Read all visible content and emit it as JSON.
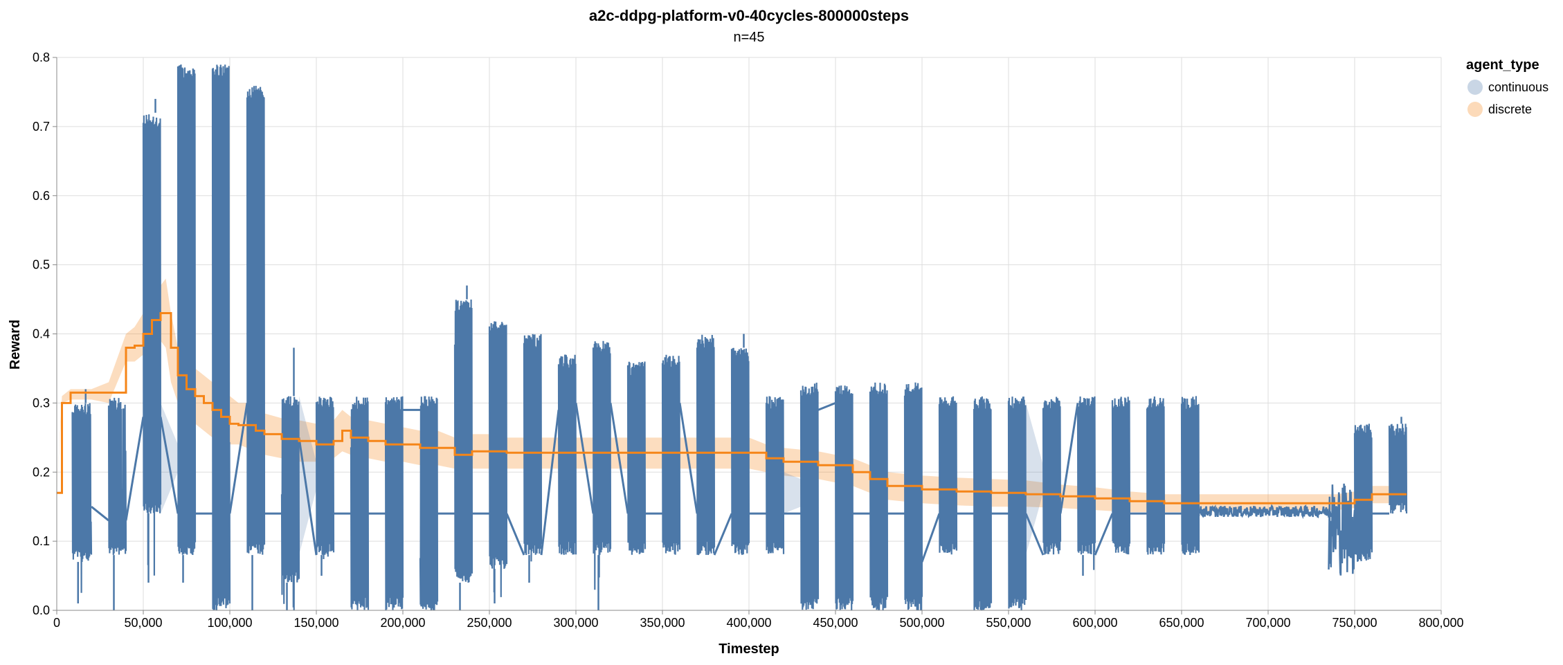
{
  "chart_data": {
    "type": "line",
    "title": "a2c-ddpg-platform-v0-40cycles-800000steps",
    "subtitle": "n=45",
    "xlabel": "Timestep",
    "ylabel": "Reward",
    "xlim": [
      0,
      800000
    ],
    "ylim": [
      0,
      0.8
    ],
    "x_ticks": [
      0,
      50000,
      100000,
      150000,
      200000,
      250000,
      300000,
      350000,
      400000,
      450000,
      500000,
      550000,
      600000,
      650000,
      700000,
      750000,
      800000
    ],
    "x_tick_labels": [
      "0",
      "50,000",
      "100,000",
      "150,000",
      "200,000",
      "250,000",
      "300,000",
      "350,000",
      "400,000",
      "450,000",
      "500,000",
      "550,000",
      "600,000",
      "650,000",
      "700,000",
      "750,000",
      "800,000"
    ],
    "y_ticks": [
      0,
      0.1,
      0.2,
      0.3,
      0.4,
      0.5,
      0.6,
      0.7,
      0.8
    ],
    "y_tick_labels": [
      "0.0",
      "0.1",
      "0.2",
      "0.3",
      "0.4",
      "0.5",
      "0.6",
      "0.7",
      "0.8"
    ],
    "grid": true,
    "legend": {
      "title": "agent_type",
      "position": "right",
      "entries": [
        {
          "name": "continuous",
          "color": "#4c78a8"
        },
        {
          "name": "discrete",
          "color": "#f58518"
        }
      ]
    },
    "series": [
      {
        "name": "discrete",
        "color": "#f58518",
        "x": [
          0,
          3000,
          8000,
          20000,
          30000,
          40000,
          45000,
          50000,
          55000,
          60000,
          63000,
          66000,
          70000,
          75000,
          80000,
          85000,
          90000,
          95000,
          100000,
          105000,
          110000,
          115000,
          120000,
          130000,
          140000,
          150000,
          160000,
          165000,
          170000,
          180000,
          190000,
          200000,
          210000,
          220000,
          230000,
          240000,
          250000,
          260000,
          280000,
          300000,
          320000,
          340000,
          360000,
          380000,
          400000,
          410000,
          420000,
          440000,
          460000,
          470000,
          480000,
          500000,
          520000,
          540000,
          560000,
          580000,
          600000,
          620000,
          640000,
          660000,
          680000,
          700000,
          720000,
          740000,
          750000,
          760000,
          780000
        ],
        "y": [
          0.17,
          0.3,
          0.315,
          0.315,
          0.315,
          0.38,
          0.383,
          0.4,
          0.42,
          0.43,
          0.43,
          0.38,
          0.34,
          0.32,
          0.31,
          0.3,
          0.29,
          0.28,
          0.27,
          0.268,
          0.268,
          0.26,
          0.255,
          0.248,
          0.245,
          0.24,
          0.245,
          0.26,
          0.25,
          0.245,
          0.24,
          0.24,
          0.235,
          0.235,
          0.225,
          0.23,
          0.23,
          0.228,
          0.228,
          0.228,
          0.228,
          0.228,
          0.228,
          0.228,
          0.228,
          0.22,
          0.215,
          0.21,
          0.2,
          0.19,
          0.18,
          0.175,
          0.172,
          0.17,
          0.168,
          0.165,
          0.162,
          0.158,
          0.155,
          0.155,
          0.155,
          0.155,
          0.155,
          0.155,
          0.16,
          0.168,
          0.168
        ],
        "lower": [
          0.17,
          0.3,
          0.305,
          0.305,
          0.3,
          0.36,
          0.36,
          0.37,
          0.38,
          0.39,
          0.38,
          0.33,
          0.3,
          0.28,
          0.27,
          0.26,
          0.25,
          0.245,
          0.24,
          0.24,
          0.235,
          0.23,
          0.225,
          0.22,
          0.215,
          0.215,
          0.22,
          0.23,
          0.225,
          0.22,
          0.215,
          0.215,
          0.21,
          0.21,
          0.205,
          0.205,
          0.205,
          0.205,
          0.205,
          0.205,
          0.205,
          0.205,
          0.205,
          0.205,
          0.205,
          0.2,
          0.195,
          0.19,
          0.18,
          0.17,
          0.16,
          0.155,
          0.152,
          0.15,
          0.15,
          0.148,
          0.145,
          0.142,
          0.142,
          0.142,
          0.145,
          0.145,
          0.145,
          0.145,
          0.148,
          0.155,
          0.155
        ],
        "upper": [
          0.17,
          0.31,
          0.32,
          0.32,
          0.33,
          0.4,
          0.41,
          0.43,
          0.46,
          0.47,
          0.48,
          0.43,
          0.38,
          0.36,
          0.35,
          0.34,
          0.33,
          0.32,
          0.31,
          0.3,
          0.3,
          0.29,
          0.285,
          0.278,
          0.275,
          0.27,
          0.275,
          0.29,
          0.28,
          0.275,
          0.27,
          0.265,
          0.26,
          0.26,
          0.25,
          0.255,
          0.255,
          0.25,
          0.25,
          0.25,
          0.25,
          0.25,
          0.25,
          0.25,
          0.25,
          0.24,
          0.235,
          0.23,
          0.22,
          0.21,
          0.2,
          0.195,
          0.192,
          0.19,
          0.188,
          0.182,
          0.178,
          0.172,
          0.168,
          0.168,
          0.168,
          0.168,
          0.168,
          0.168,
          0.172,
          0.18,
          0.18
        ]
      },
      {
        "name": "continuous",
        "color": "#4c78a8",
        "blocks": [
          {
            "x0": 9000,
            "x1": 20000,
            "low": 0.07,
            "high": 0.3,
            "min": 0.01,
            "max": 0.32
          },
          {
            "x0": 30000,
            "x1": 40000,
            "low": 0.08,
            "high": 0.31,
            "min": 0.0,
            "max": 0.31
          },
          {
            "x0": 50000,
            "x1": 60000,
            "low": 0.14,
            "high": 0.72,
            "min": 0.04,
            "max": 0.74
          },
          {
            "x0": 70000,
            "x1": 80000,
            "low": 0.08,
            "high": 0.79,
            "min": 0.04,
            "max": 0.79
          },
          {
            "x0": 90000,
            "x1": 100000,
            "low": 0.0,
            "high": 0.79,
            "min": 0.0,
            "max": 0.79
          },
          {
            "x0": 110000,
            "x1": 120000,
            "low": 0.08,
            "high": 0.76,
            "min": 0.0,
            "max": 0.76
          },
          {
            "x0": 130000,
            "x1": 140000,
            "low": 0.04,
            "high": 0.31,
            "min": 0.0,
            "max": 0.38
          },
          {
            "x0": 150000,
            "x1": 160000,
            "low": 0.08,
            "high": 0.31,
            "min": 0.05,
            "max": 0.31
          },
          {
            "x0": 170000,
            "x1": 180000,
            "low": 0.0,
            "high": 0.31,
            "min": 0.0,
            "max": 0.31
          },
          {
            "x0": 190000,
            "x1": 200000,
            "low": 0.0,
            "high": 0.31,
            "min": 0.0,
            "max": 0.31
          },
          {
            "x0": 210000,
            "x1": 220000,
            "low": 0.0,
            "high": 0.31,
            "min": 0.0,
            "max": 0.31
          },
          {
            "x0": 230000,
            "x1": 240000,
            "low": 0.04,
            "high": 0.45,
            "min": 0.0,
            "max": 0.47
          },
          {
            "x0": 250000,
            "x1": 260000,
            "low": 0.06,
            "high": 0.42,
            "min": 0.01,
            "max": 0.42
          },
          {
            "x0": 270000,
            "x1": 280000,
            "low": 0.08,
            "high": 0.4,
            "min": 0.04,
            "max": 0.4
          },
          {
            "x0": 290000,
            "x1": 300000,
            "low": 0.08,
            "high": 0.37,
            "min": 0.08,
            "max": 0.37
          },
          {
            "x0": 310000,
            "x1": 320000,
            "low": 0.08,
            "high": 0.39,
            "min": 0.0,
            "max": 0.39
          },
          {
            "x0": 330000,
            "x1": 340000,
            "low": 0.08,
            "high": 0.36,
            "min": 0.08,
            "max": 0.36
          },
          {
            "x0": 350000,
            "x1": 360000,
            "low": 0.08,
            "high": 0.37,
            "min": 0.08,
            "max": 0.37
          },
          {
            "x0": 370000,
            "x1": 380000,
            "low": 0.08,
            "high": 0.4,
            "min": 0.08,
            "max": 0.4
          },
          {
            "x0": 390000,
            "x1": 400000,
            "low": 0.08,
            "high": 0.38,
            "min": 0.08,
            "max": 0.4
          },
          {
            "x0": 410000,
            "x1": 420000,
            "low": 0.08,
            "high": 0.31,
            "min": 0.08,
            "max": 0.31
          },
          {
            "x0": 430000,
            "x1": 440000,
            "low": 0.0,
            "high": 0.33,
            "min": 0.0,
            "max": 0.33
          },
          {
            "x0": 450000,
            "x1": 460000,
            "low": 0.0,
            "high": 0.33,
            "min": 0.0,
            "max": 0.33
          },
          {
            "x0": 470000,
            "x1": 480000,
            "low": 0.0,
            "high": 0.33,
            "min": 0.0,
            "max": 0.33
          },
          {
            "x0": 490000,
            "x1": 500000,
            "low": 0.0,
            "high": 0.33,
            "min": 0.0,
            "max": 0.33
          },
          {
            "x0": 510000,
            "x1": 520000,
            "low": 0.08,
            "high": 0.31,
            "min": 0.08,
            "max": 0.31
          },
          {
            "x0": 530000,
            "x1": 540000,
            "low": 0.0,
            "high": 0.31,
            "min": 0.0,
            "max": 0.31
          },
          {
            "x0": 550000,
            "x1": 560000,
            "low": 0.0,
            "high": 0.31,
            "min": 0.0,
            "max": 0.31
          },
          {
            "x0": 570000,
            "x1": 580000,
            "low": 0.08,
            "high": 0.31,
            "min": 0.08,
            "max": 0.31
          },
          {
            "x0": 590000,
            "x1": 600000,
            "low": 0.08,
            "high": 0.31,
            "min": 0.05,
            "max": 0.31
          },
          {
            "x0": 610000,
            "x1": 620000,
            "low": 0.08,
            "high": 0.31,
            "min": 0.08,
            "max": 0.31
          },
          {
            "x0": 630000,
            "x1": 640000,
            "low": 0.08,
            "high": 0.31,
            "min": 0.08,
            "max": 0.31
          },
          {
            "x0": 650000,
            "x1": 660000,
            "low": 0.08,
            "high": 0.31,
            "min": 0.08,
            "max": 0.31
          },
          {
            "x0": 750000,
            "x1": 760000,
            "low": 0.07,
            "high": 0.27,
            "min": 0.07,
            "max": 0.27
          },
          {
            "x0": 770000,
            "x1": 780000,
            "low": 0.14,
            "high": 0.27,
            "min": 0.14,
            "max": 0.28
          }
        ],
        "connectors": [
          [
            20000,
            0.15,
            30000,
            0.13
          ],
          [
            40000,
            0.13,
            50000,
            0.28
          ],
          [
            60000,
            0.28,
            70000,
            0.14
          ],
          [
            80000,
            0.14,
            90000,
            0.14
          ],
          [
            100000,
            0.14,
            110000,
            0.3
          ],
          [
            120000,
            0.14,
            130000,
            0.14
          ],
          [
            140000,
            0.25,
            150000,
            0.08
          ],
          [
            160000,
            0.14,
            170000,
            0.14
          ],
          [
            180000,
            0.14,
            190000,
            0.14
          ],
          [
            200000,
            0.29,
            210000,
            0.29
          ],
          [
            220000,
            0.14,
            230000,
            0.14
          ],
          [
            240000,
            0.14,
            250000,
            0.14
          ],
          [
            260000,
            0.14,
            270000,
            0.08
          ],
          [
            280000,
            0.08,
            290000,
            0.29
          ],
          [
            300000,
            0.3,
            310000,
            0.14
          ],
          [
            320000,
            0.3,
            330000,
            0.14
          ],
          [
            340000,
            0.14,
            350000,
            0.14
          ],
          [
            360000,
            0.3,
            370000,
            0.14
          ],
          [
            380000,
            0.08,
            390000,
            0.14
          ],
          [
            400000,
            0.14,
            410000,
            0.14
          ],
          [
            420000,
            0.14,
            430000,
            0.14
          ],
          [
            440000,
            0.29,
            450000,
            0.3
          ],
          [
            460000,
            0.14,
            470000,
            0.14
          ],
          [
            480000,
            0.14,
            490000,
            0.14
          ],
          [
            500000,
            0.07,
            510000,
            0.14
          ],
          [
            520000,
            0.14,
            530000,
            0.14
          ],
          [
            540000,
            0.14,
            550000,
            0.14
          ],
          [
            560000,
            0.14,
            570000,
            0.08
          ],
          [
            580000,
            0.14,
            590000,
            0.3
          ],
          [
            600000,
            0.08,
            610000,
            0.14
          ],
          [
            620000,
            0.14,
            630000,
            0.14
          ],
          [
            640000,
            0.14,
            650000,
            0.14
          ],
          [
            760000,
            0.14,
            770000,
            0.14
          ]
        ],
        "noise_segments": [
          {
            "x0": 660000,
            "x1": 740000,
            "y": 0.143,
            "amp": 0.008
          },
          {
            "x0": 735000,
            "x1": 750000,
            "y": 0.12,
            "amp": 0.07
          }
        ],
        "shaded_gaps": [
          [
            60000,
            70000,
            0.14,
            0.3
          ],
          [
            140000,
            150000,
            0.08,
            0.31
          ],
          [
            420000,
            430000,
            0.14,
            0.2
          ],
          [
            560000,
            570000,
            0.08,
            0.3
          ]
        ]
      }
    ]
  }
}
